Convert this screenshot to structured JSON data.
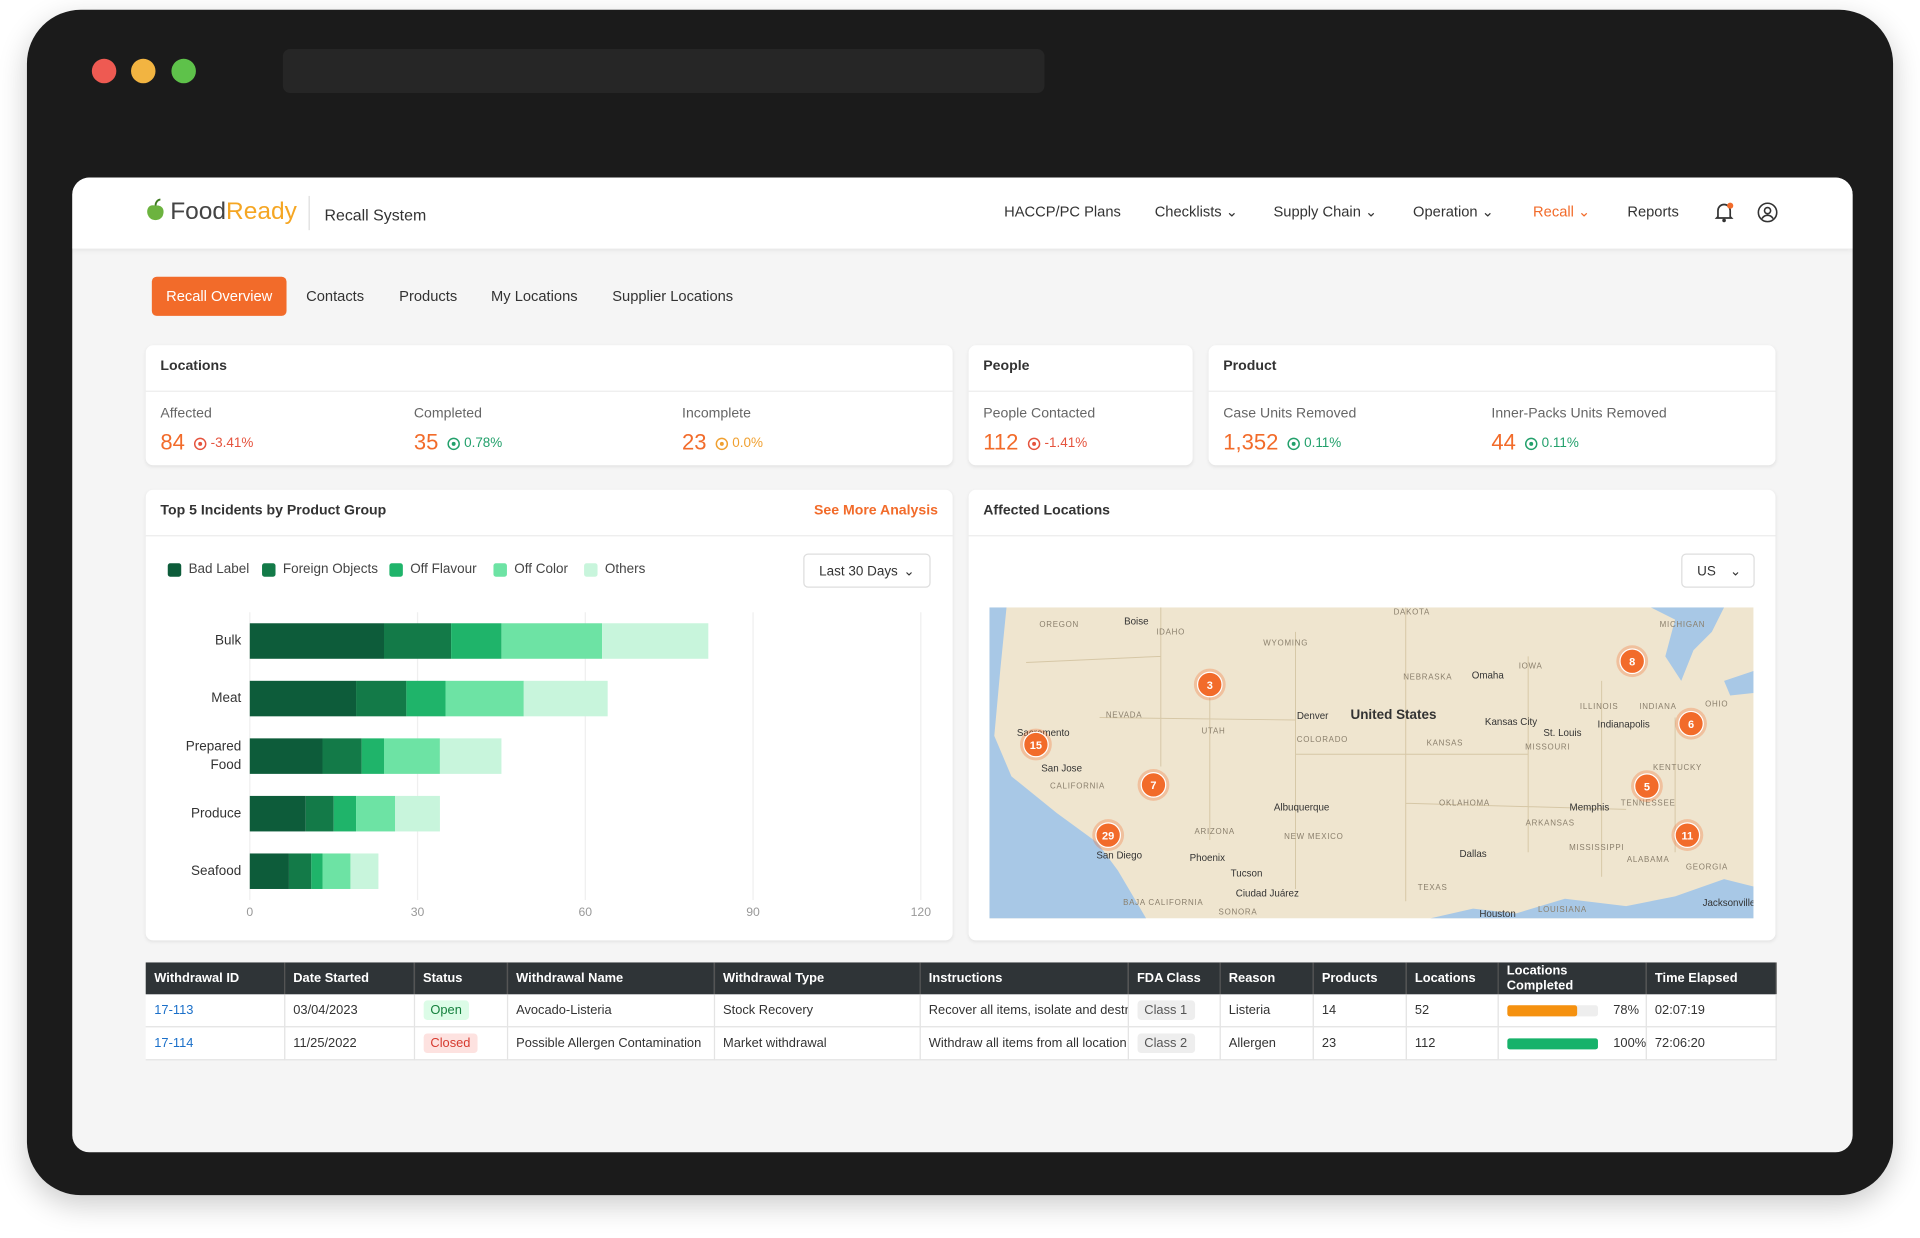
{
  "header": {
    "brand": [
      "Food",
      "Ready"
    ],
    "app": "Recall System",
    "nav": [
      "HACCP/PC Plans",
      "Checklists",
      "Supply Chain",
      "Operation",
      "Recall",
      "Reports"
    ]
  },
  "tabs": [
    "Recall Overview",
    "Contacts",
    "Products",
    "My Locations",
    "Supplier Locations"
  ],
  "cards": [
    {
      "title": "Locations",
      "metrics": [
        {
          "label": "Affected",
          "value": "84",
          "change": "-3.41%",
          "color": "#e5533d"
        },
        {
          "label": "Completed",
          "value": "35",
          "change": "0.78%",
          "color": "#22a06b"
        },
        {
          "label": "Incomplete",
          "value": "23",
          "change": "0.0%",
          "color": "#f0a030"
        }
      ]
    },
    {
      "title": "People",
      "metrics": [
        {
          "label": "People Contacted",
          "value": "112",
          "change": "-1.41%",
          "color": "#e5533d"
        }
      ]
    },
    {
      "title": "Product",
      "metrics": [
        {
          "label": "Case Units Removed",
          "value": "1,352",
          "change": "0.11%",
          "color": "#22a06b"
        },
        {
          "label": "Inner-Packs Units Removed",
          "value": "44",
          "change": "0.11%",
          "color": "#22a06b"
        }
      ]
    }
  ],
  "chart_data": {
    "type": "stacked-bar-horizontal",
    "title": "Top 5 Incidents by Product Group",
    "link": "See More Analysis",
    "period": "Last 30 Days",
    "categories": [
      "Bulk",
      "Meat",
      "Prepared Food",
      "Produce",
      "Seafood"
    ],
    "series": [
      {
        "name": "Bad Label",
        "color": "#0d5c3a",
        "values": [
          24,
          19,
          13,
          10,
          7
        ]
      },
      {
        "name": "Foreign Objects",
        "color": "#137a48",
        "values": [
          12,
          9,
          7,
          5,
          4
        ]
      },
      {
        "name": "Off Flavour",
        "color": "#1fb46a",
        "values": [
          9,
          7,
          4,
          4,
          2
        ]
      },
      {
        "name": "Off Color",
        "color": "#6de3a4",
        "values": [
          18,
          14,
          10,
          7,
          5
        ]
      },
      {
        "name": "Others",
        "color": "#c8f5dc",
        "values": [
          19,
          15,
          11,
          8,
          5
        ]
      }
    ],
    "xlim": [
      0,
      120
    ],
    "xticks": [
      0,
      30,
      60,
      90,
      120
    ],
    "grid": true,
    "legend": "top-left"
  },
  "map": {
    "title": "Affected Locations",
    "region": "US",
    "clusters": [
      3,
      15,
      7,
      29,
      8,
      6,
      5,
      11
    ],
    "labels": [
      "OREGON",
      "Boise",
      "IDAHO",
      "WYOMING",
      "DAKOTA",
      "NEBRASKA",
      "Omaha",
      "IOWA",
      "MICHIGAN",
      "NEVADA",
      "UTAH",
      "Denver",
      "United States",
      "COLORADO",
      "KANSAS",
      "Kansas City",
      "ILLINOIS",
      "INDIANA",
      "OHIO",
      "St. Louis",
      "MISSOURI",
      "Indianapolis",
      "Sacramento",
      "San Jose",
      "CALIFORNIA",
      "KENTUCKY",
      "Albuquerque",
      "OKLAHOMA",
      "ARKANSAS",
      "Memphis",
      "TENNESSEE",
      "ARIZONA",
      "NEW MEXICO",
      "Phoenix",
      "San Diego",
      "Dallas",
      "MISSISSIPPI",
      "ALABAMA",
      "GEORGIA",
      "Tucson",
      "Ciudad Juárez",
      "TEXAS",
      "BAJA CALIFORNIA",
      "SONORA",
      "Houston",
      "LOUISIANA",
      "Jacksonville"
    ]
  },
  "table": {
    "columns": [
      "Withdrawal ID",
      "Date Started",
      "Status",
      "Withdrawal Name",
      "Withdrawal Type",
      "Instructions",
      "FDA Class",
      "Reason",
      "Products",
      "Locations",
      "Locations Completed",
      "Time Elapsed"
    ],
    "rows": [
      [
        "17-113",
        "03/04/2023",
        {
          "text": "Open",
          "color": "#15803d",
          "background": "#dcfce7"
        },
        "Avocado-Listeria",
        "Stock Recovery",
        "Recover all items, isolate and destr",
        "Class 1",
        "Listeria",
        "14",
        "52",
        {
          "value": 78,
          "label": "78%",
          "color": "#f5910f"
        },
        "02:07:19"
      ],
      [
        "17-114",
        "11/25/2022",
        {
          "text": "Closed",
          "color": "#d63a2f",
          "background": "#fde2e0"
        },
        "Possible Allergen Contamination",
        "Market withdrawal",
        "Withdraw all items from all location",
        "Class 2",
        "Allergen",
        "23",
        "112",
        {
          "value": 100,
          "label": "100%",
          "color": "#17b26a"
        },
        "72:06:20"
      ]
    ]
  }
}
